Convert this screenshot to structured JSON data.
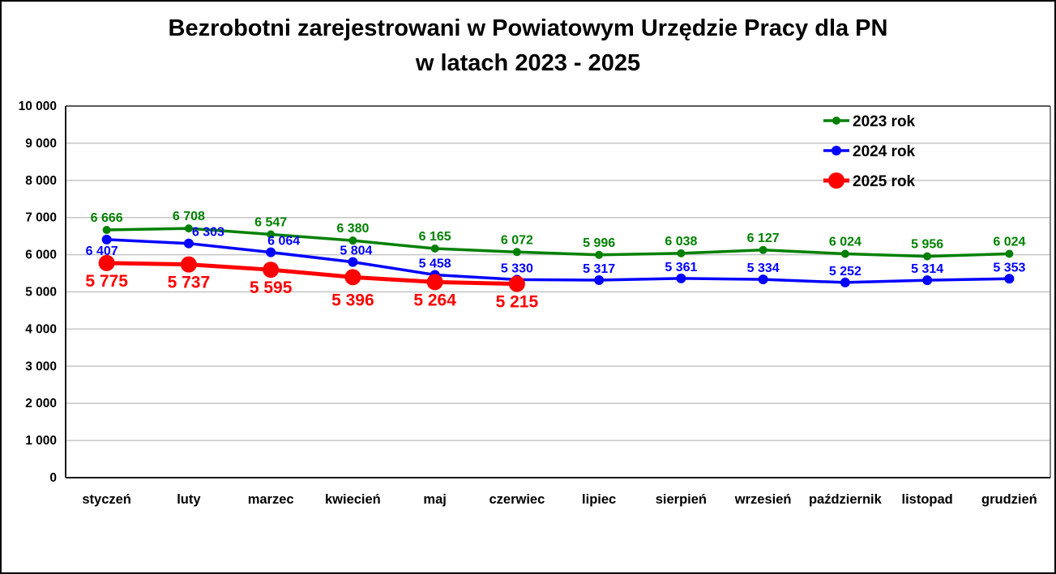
{
  "chart_data": {
    "type": "line",
    "title_line1": "Bezrobotni zarejestrowani w Powiatowym Urzędzie Pracy dla PN",
    "title_line2": "w latach 2023 - 2025",
    "xlabel": "",
    "ylabel": "",
    "categories": [
      "styczeń",
      "luty",
      "marzec",
      "kwiecień",
      "maj",
      "czerwiec",
      "lipiec",
      "sierpień",
      "wrzesień",
      "październik",
      "listopad",
      "grudzień"
    ],
    "series": [
      {
        "name": "2023 rok",
        "color": "#008000",
        "values": [
          6666,
          6708,
          6547,
          6380,
          6165,
          6072,
          5996,
          6038,
          6127,
          6024,
          5956,
          6024
        ],
        "line_width": 3.5,
        "marker_radius": 5,
        "label_font": 16,
        "label_dy": -10,
        "label_offsets": {}
      },
      {
        "name": "2024 rok",
        "color": "#0000FF",
        "values": [
          6407,
          6303,
          6064,
          5804,
          5458,
          5330,
          5317,
          5361,
          5334,
          5252,
          5314,
          5353
        ],
        "line_width": 3.5,
        "marker_radius": 6,
        "label_font": 16,
        "label_dy": -9,
        "label_offsets": {
          "0": {
            "dx": -6,
            "dy": 19
          },
          "1": {
            "dx": 24
          },
          "2": {
            "dx": 16
          },
          "3": {
            "dx": 4
          }
        }
      },
      {
        "name": "2025 rok",
        "color": "#FF0000",
        "values": [
          5775,
          5737,
          5595,
          5396,
          5264,
          5215
        ],
        "line_width": 5,
        "marker_radius": 10,
        "label_font": 21,
        "label_dy": 29,
        "label_offsets": {
          "3": {
            "dy": 35
          }
        }
      }
    ],
    "ylim": [
      0,
      10000
    ],
    "yticks": [
      0,
      1000,
      2000,
      3000,
      4000,
      5000,
      6000,
      7000,
      8000,
      9000,
      10000
    ],
    "ytick_labels": [
      "0",
      "1 000",
      "2 000",
      "3 000",
      "4 000",
      "5 000",
      "6 000",
      "7 000",
      "8 000",
      "9 000",
      "10 000"
    ],
    "grid": true,
    "gridline_color": "#C6C6C6",
    "plot_border_dark": "#595959",
    "axis_color": "#1a1a1a",
    "text_color": "#000000",
    "legend_position": "top-right",
    "number_format": "space-thousands"
  }
}
